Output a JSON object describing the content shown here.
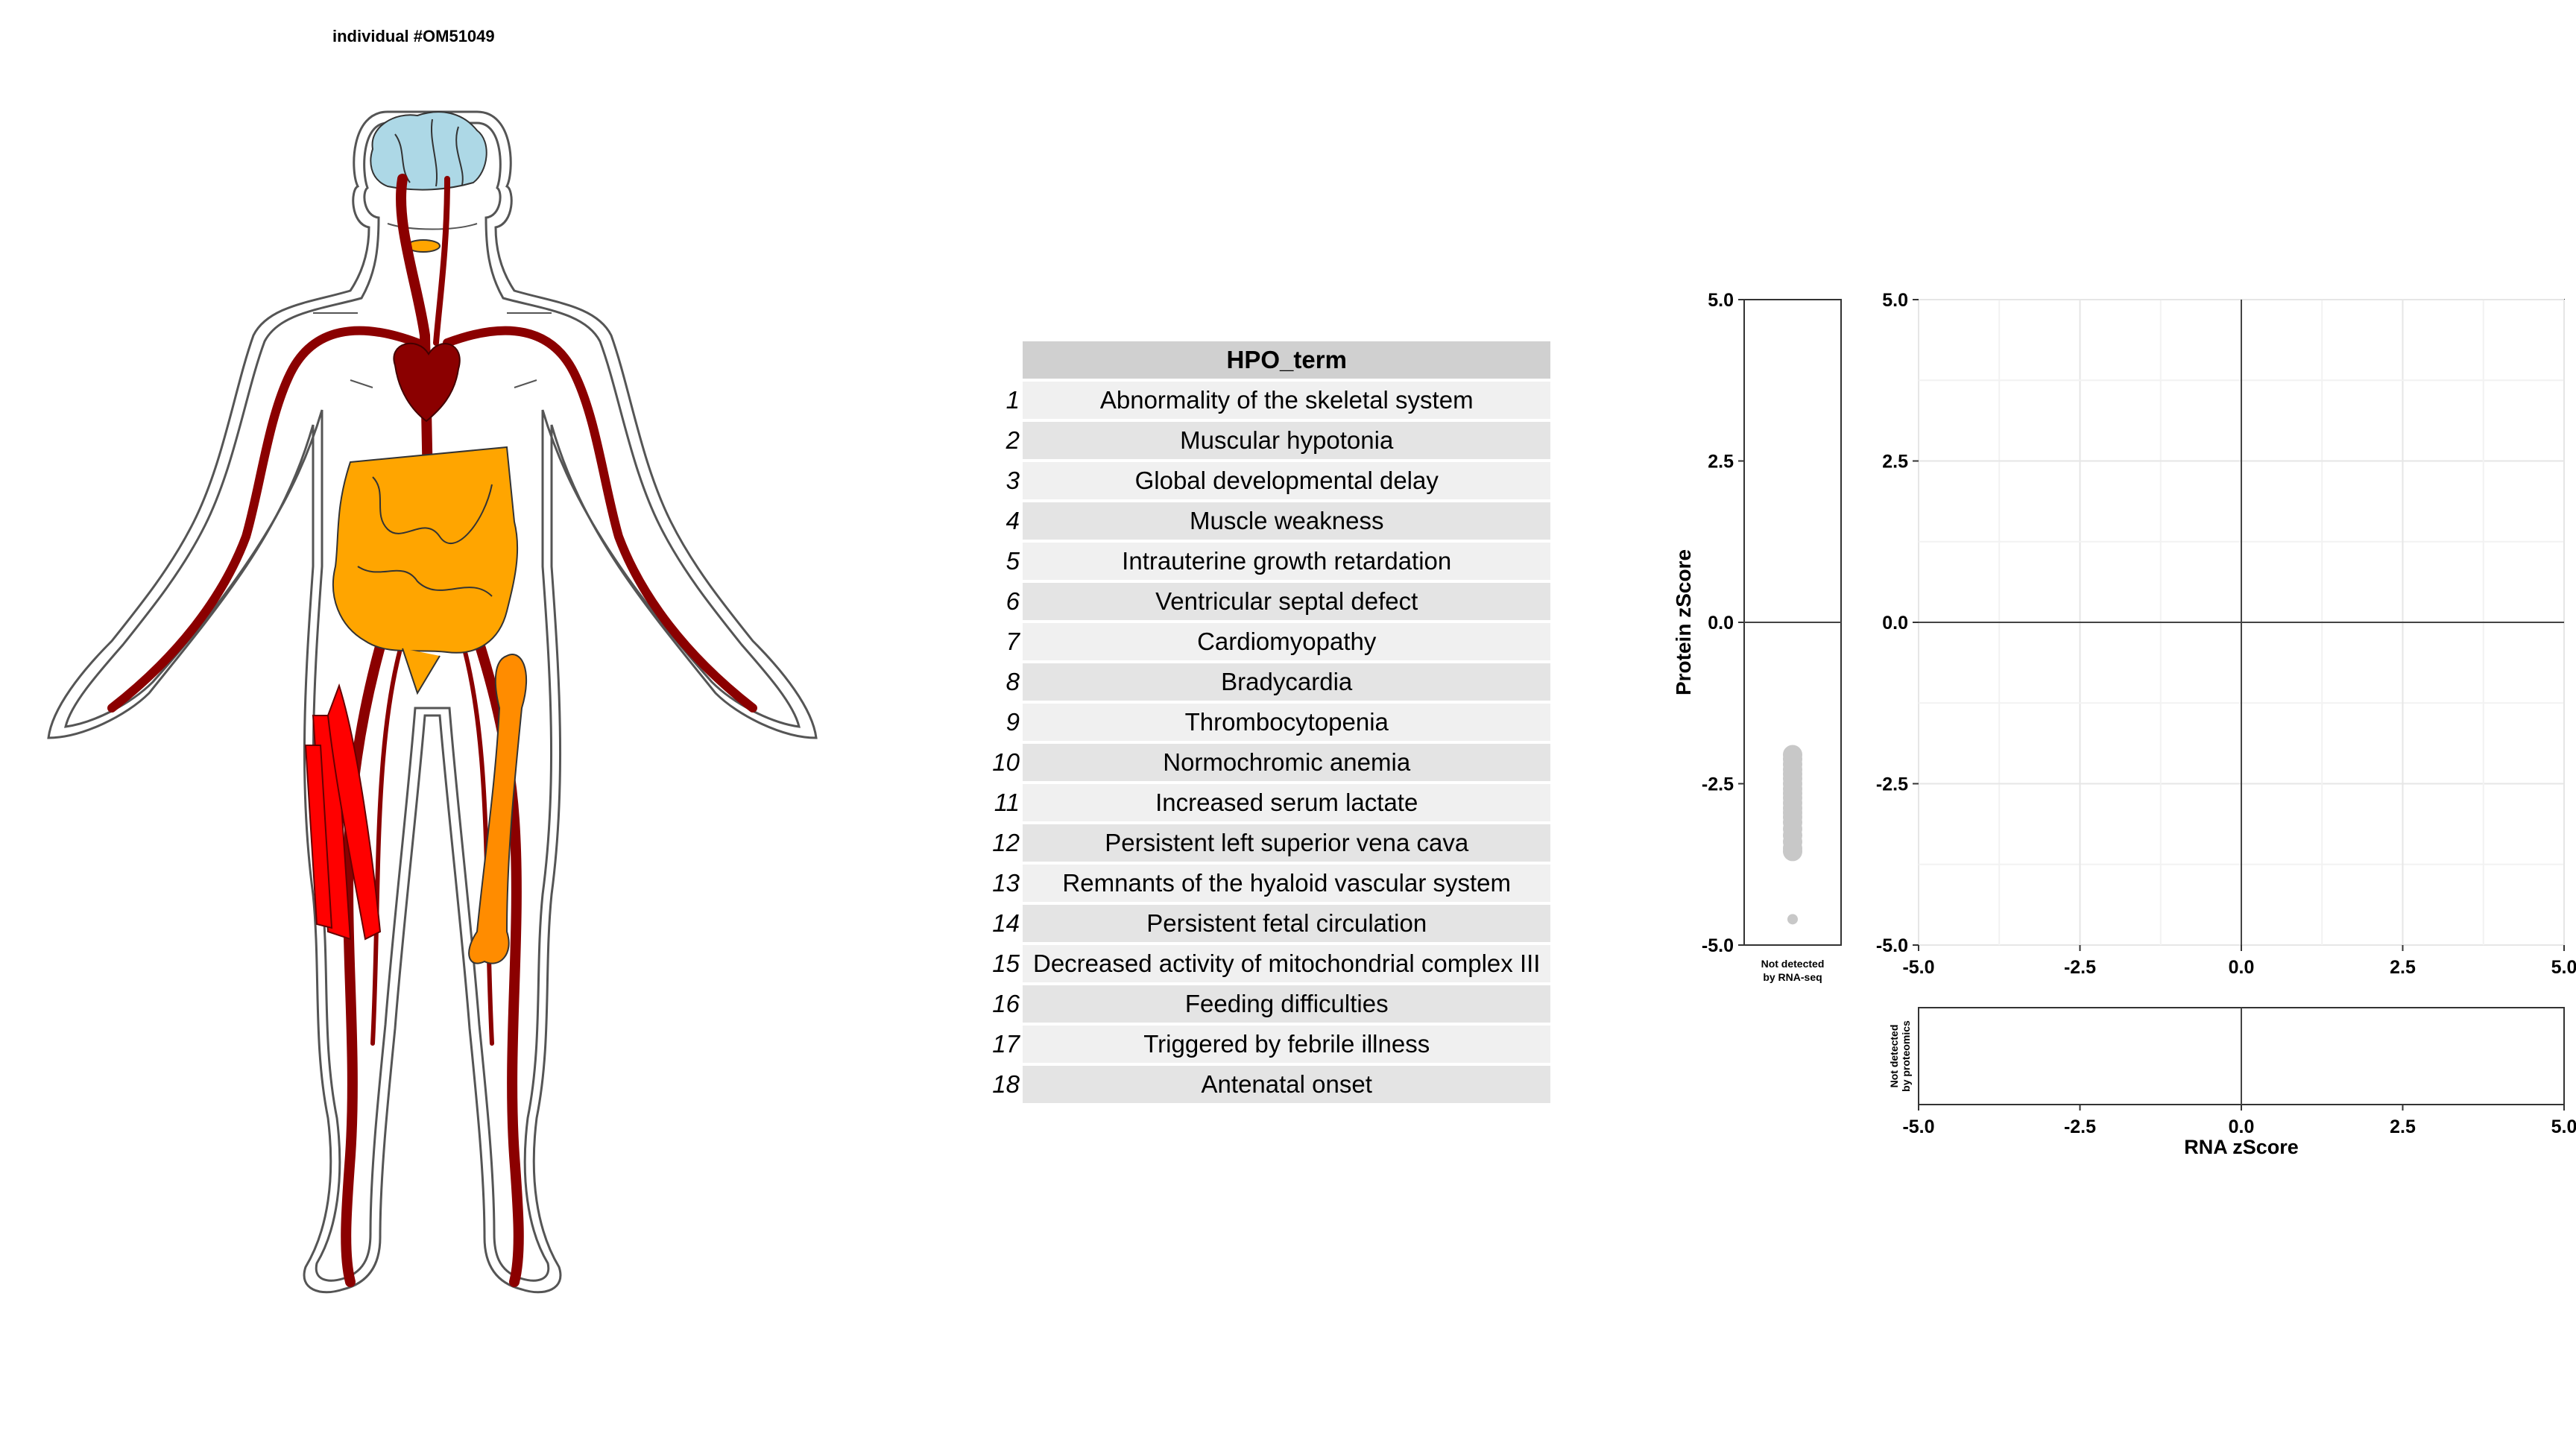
{
  "title": "individual #OM51049",
  "organ_colors": {
    "brain": "#add8e6",
    "vessels": "#8b0000",
    "digestive": "#ffa500",
    "muscle": "#ff0000",
    "bone": "#ff8c00",
    "outline": "#555555"
  },
  "table": {
    "header": "HPO_term",
    "rows": [
      {
        "num": "1",
        "term": "Abnormality of the skeletal system"
      },
      {
        "num": "2",
        "term": "Muscular hypotonia"
      },
      {
        "num": "3",
        "term": "Global developmental delay"
      },
      {
        "num": "4",
        "term": "Muscle weakness"
      },
      {
        "num": "5",
        "term": "Intrauterine growth retardation"
      },
      {
        "num": "6",
        "term": "Ventricular septal defect"
      },
      {
        "num": "7",
        "term": "Cardiomyopathy"
      },
      {
        "num": "8",
        "term": "Bradycardia"
      },
      {
        "num": "9",
        "term": "Thrombocytopenia"
      },
      {
        "num": "10",
        "term": "Normochromic anemia"
      },
      {
        "num": "11",
        "term": "Increased serum lactate"
      },
      {
        "num": "12",
        "term": "Persistent left superior vena cava"
      },
      {
        "num": "13",
        "term": "Remnants of the hyaloid vascular system"
      },
      {
        "num": "14",
        "term": "Persistent fetal circulation"
      },
      {
        "num": "15",
        "term": "Decreased activity of mitochondrial complex III"
      },
      {
        "num": "16",
        "term": "Feeding difficulties"
      },
      {
        "num": "17",
        "term": "Triggered by febrile illness"
      },
      {
        "num": "18",
        "term": "Antenatal onset"
      }
    ]
  },
  "chart_data": [
    {
      "type": "scatter",
      "panel": "not-detected-rna",
      "x_label_lines": [
        "Not detected",
        "by RNA-seq"
      ],
      "ylabel": "Protein zScore",
      "ylim": [
        -5,
        5
      ],
      "y_ticks": [
        "5.0",
        "2.5",
        "0.0",
        "-2.5",
        "-5.0"
      ],
      "point_color": "#c8c8c8",
      "points_y": [
        -2.05,
        -2.12,
        -2.2,
        -2.28,
        -2.35,
        -2.42,
        -2.5,
        -2.58,
        -2.65,
        -2.72,
        -2.8,
        -2.88,
        -2.95,
        -3.02,
        -3.1,
        -3.2,
        -3.3,
        -3.4,
        -3.5,
        -3.55,
        -4.6
      ]
    },
    {
      "type": "scatter",
      "panel": "main",
      "xlim": [
        -5,
        5
      ],
      "ylim": [
        -5,
        5
      ],
      "x_ticks": [
        "-5.0",
        "-2.5",
        "0.0",
        "2.5",
        "5.0"
      ],
      "y_ticks": [
        "5.0",
        "2.5",
        "0.0",
        "-2.5",
        "-5.0"
      ],
      "grid": true,
      "points": []
    },
    {
      "type": "scatter",
      "panel": "not-detected-protein",
      "y_label_lines": [
        "Not detected",
        "by proteomics"
      ],
      "xlabel": "RNA zScore",
      "xlim": [
        -5,
        5
      ],
      "x_ticks": [
        "-5.0",
        "-2.5",
        "0.0",
        "2.5",
        "5.0"
      ],
      "points": []
    }
  ]
}
